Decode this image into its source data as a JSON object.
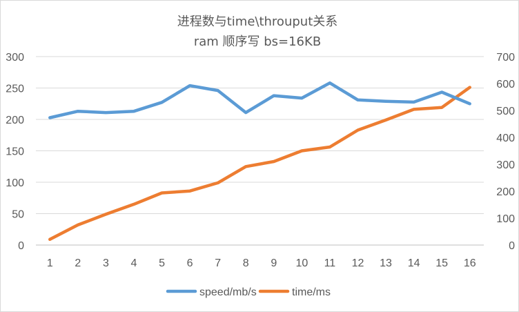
{
  "chart_data": {
    "type": "line",
    "title": "进程数与time\\throuput关系",
    "subtitle": "ram 顺序写 bs=16KB",
    "categories": [
      "1",
      "2",
      "3",
      "4",
      "5",
      "6",
      "7",
      "8",
      "9",
      "10",
      "11",
      "12",
      "13",
      "14",
      "15",
      "16"
    ],
    "y_left": {
      "min": 0,
      "max": 300,
      "step": 50,
      "ticks": [
        "0",
        "50",
        "100",
        "150",
        "200",
        "250",
        "300"
      ]
    },
    "y_right": {
      "min": 0,
      "max": 700,
      "step": 100,
      "ticks": [
        "0",
        "100",
        "200",
        "300",
        "400",
        "500",
        "600",
        "700"
      ]
    },
    "grid": true,
    "legend_position": "bottom",
    "series": [
      {
        "name": "time/ms",
        "axis": "left",
        "color": "#ed7d31",
        "values": [
          9,
          32,
          49,
          65,
          83,
          86,
          99,
          125,
          133,
          150,
          156,
          183,
          199,
          216,
          219,
          251
        ]
      },
      {
        "name": "speed/mb/s",
        "axis": "right",
        "color": "#5b9bd5",
        "values": [
          473,
          497,
          492,
          497,
          530,
          592,
          574,
          492,
          555,
          546,
          602,
          539,
          534,
          531,
          568,
          525
        ]
      }
    ]
  }
}
